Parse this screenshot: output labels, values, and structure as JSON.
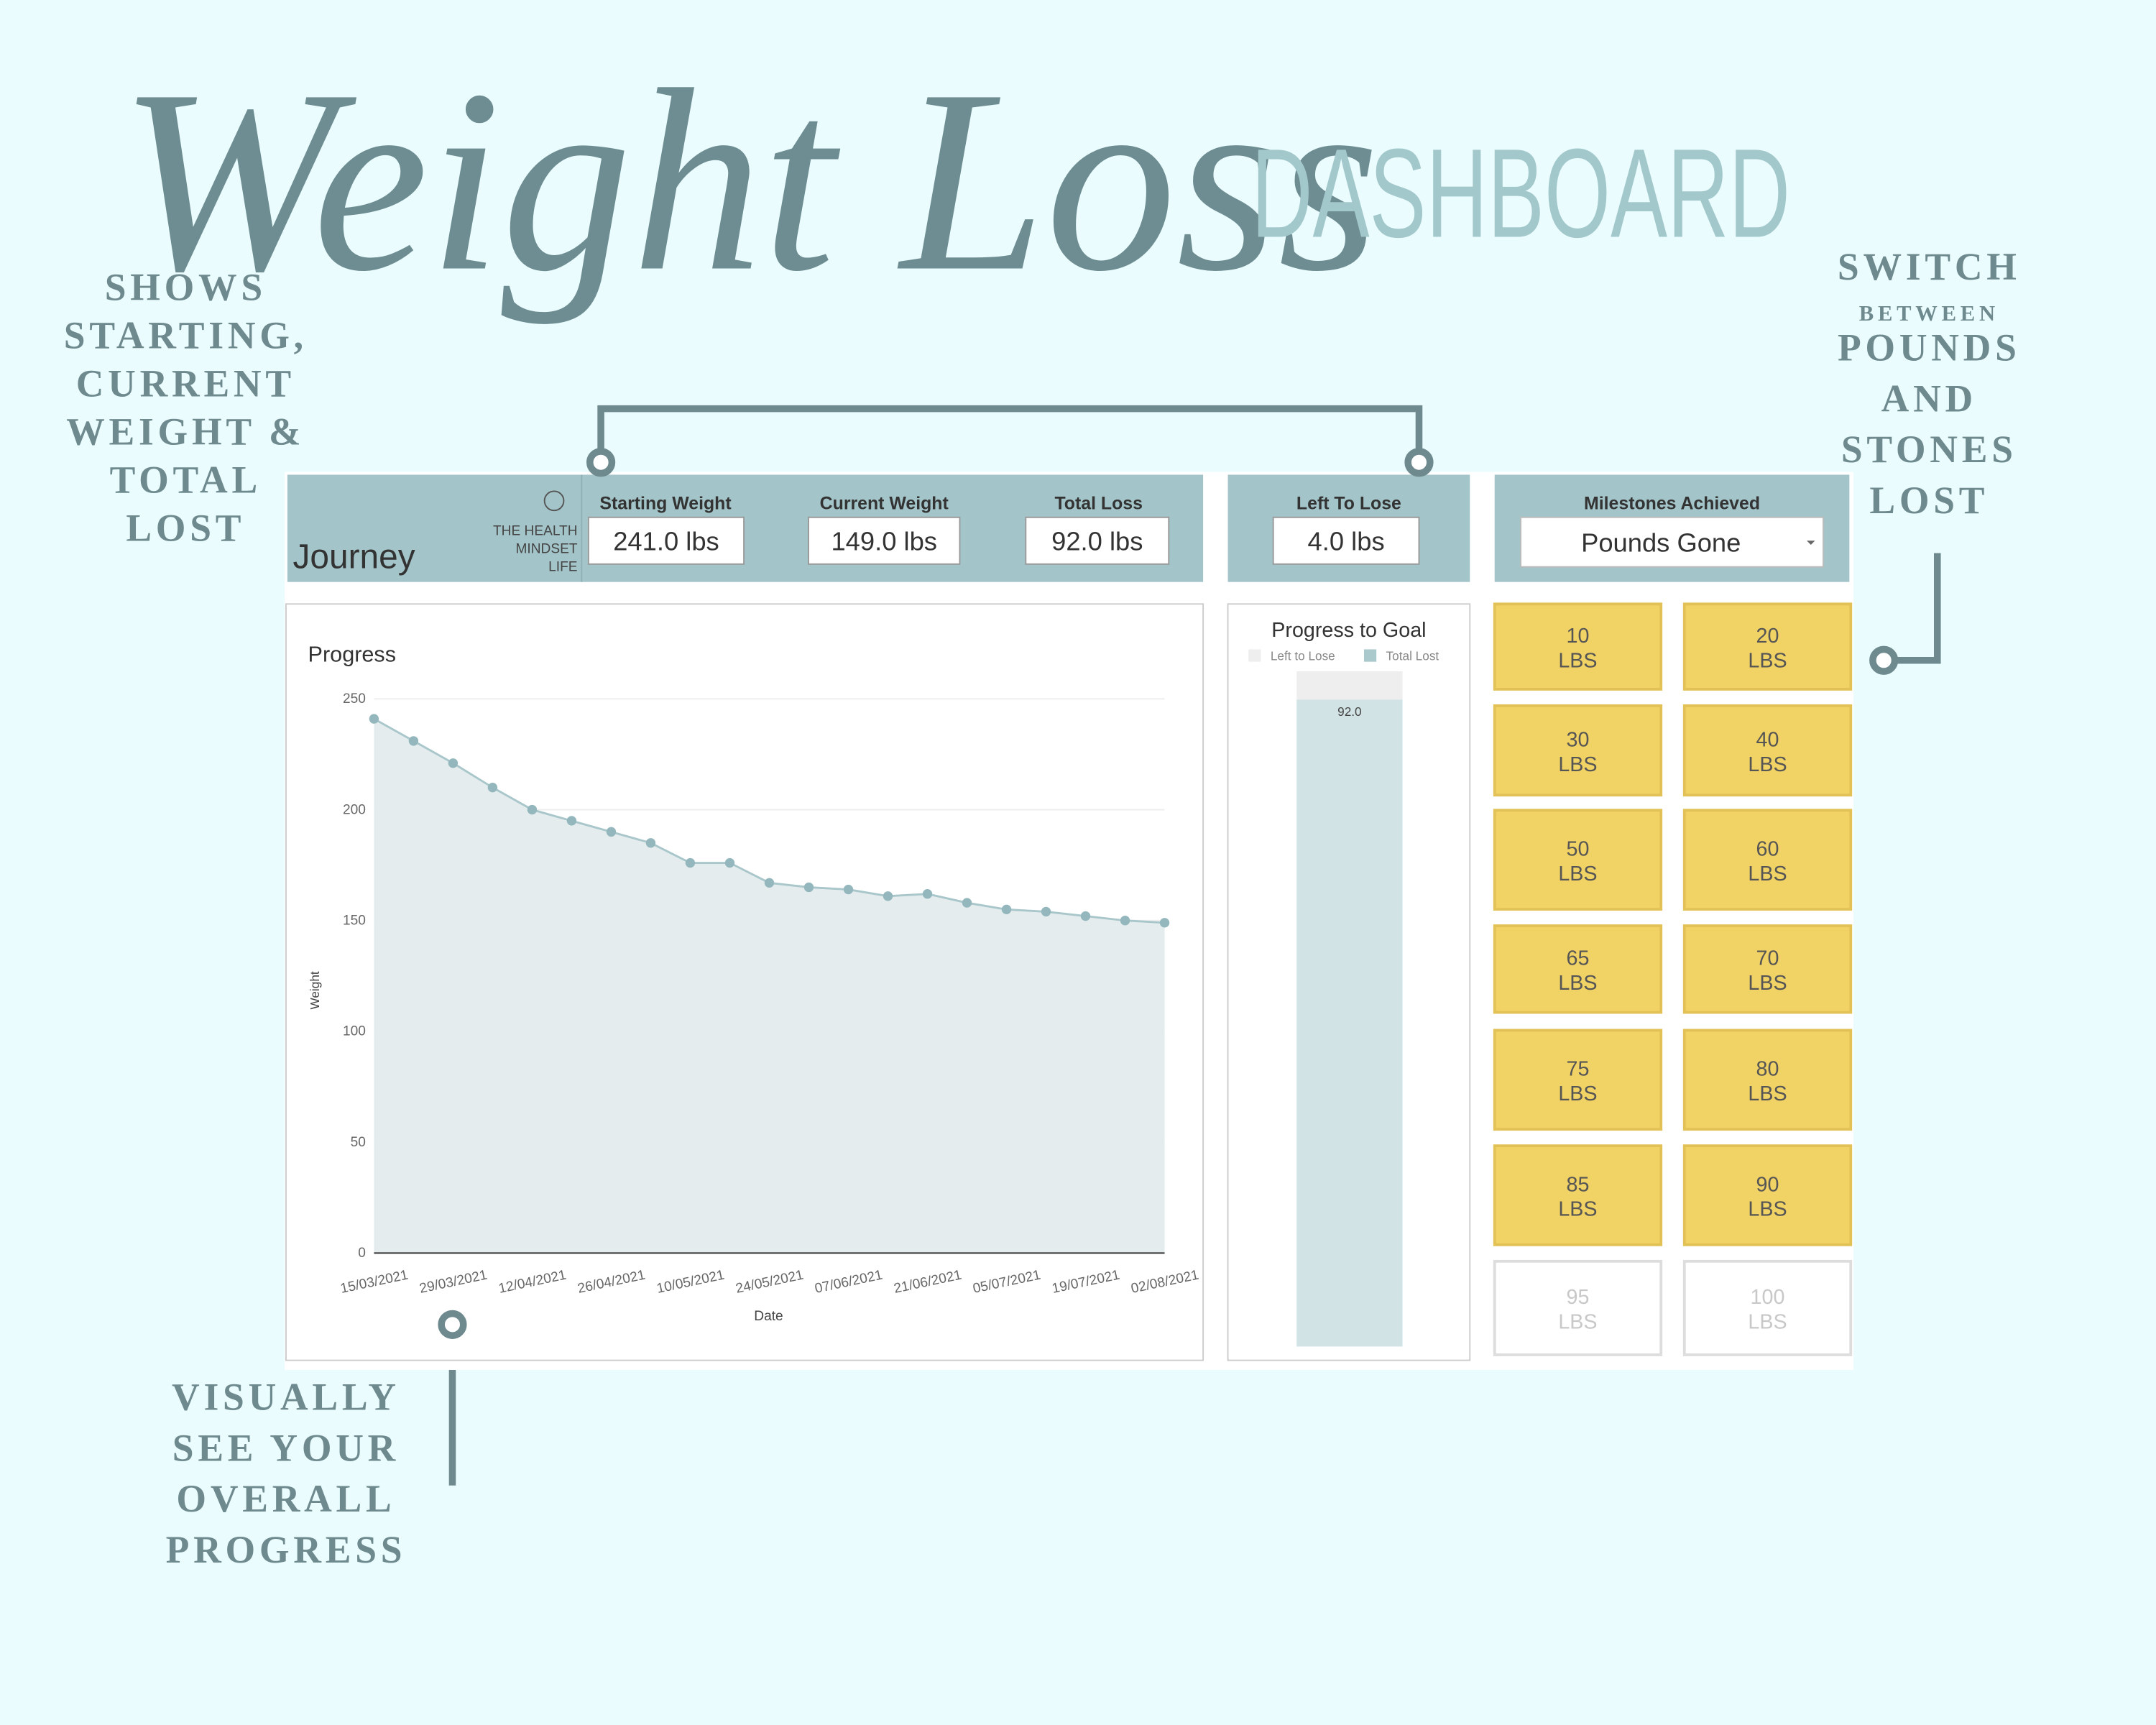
{
  "header": {
    "title": "Weight Loss",
    "subtitle": "DASHBOARD"
  },
  "annotations": {
    "summary": [
      "SHOWS",
      "STARTING,",
      "CURRENT",
      "WEIGHT &",
      "TOTAL",
      "LOST"
    ],
    "units": [
      "SWITCH",
      "BETWEEN",
      "POUNDS",
      "AND",
      "STONES",
      "LOST"
    ],
    "progress": [
      "VISUALLY",
      "SEE YOUR",
      "OVERALL",
      "PROGRESS"
    ]
  },
  "dashboard": {
    "name": "Journey",
    "brand": [
      "THE HEALTH",
      "MINDSET",
      "LIFE"
    ],
    "stats": [
      {
        "label": "Starting Weight",
        "value": "241.0 lbs"
      },
      {
        "label": "Current Weight",
        "value": "149.0 lbs"
      },
      {
        "label": "Total Loss",
        "value": "92.0 lbs"
      },
      {
        "label": "Left To Lose",
        "value": "4.0 lbs"
      }
    ],
    "milestones": {
      "label": "Milestones Achieved",
      "selected": "Pounds Gone",
      "items": [
        {
          "value": 10,
          "unit": "LBS",
          "achieved": true
        },
        {
          "value": 20,
          "unit": "LBS",
          "achieved": true
        },
        {
          "value": 30,
          "unit": "LBS",
          "achieved": true
        },
        {
          "value": 40,
          "unit": "LBS",
          "achieved": true
        },
        {
          "value": 50,
          "unit": "LBS",
          "achieved": true
        },
        {
          "value": 60,
          "unit": "LBS",
          "achieved": true
        },
        {
          "value": 65,
          "unit": "LBS",
          "achieved": true
        },
        {
          "value": 70,
          "unit": "LBS",
          "achieved": true
        },
        {
          "value": 75,
          "unit": "LBS",
          "achieved": true
        },
        {
          "value": 80,
          "unit": "LBS",
          "achieved": true
        },
        {
          "value": 85,
          "unit": "LBS",
          "achieved": true
        },
        {
          "value": 90,
          "unit": "LBS",
          "achieved": true
        },
        {
          "value": 95,
          "unit": "LBS",
          "achieved": false
        },
        {
          "value": 100,
          "unit": "LBS",
          "achieved": false
        }
      ]
    }
  },
  "chart_data": [
    {
      "type": "area",
      "title": "Progress",
      "xlabel": "Date",
      "ylabel": "Weight",
      "categories": [
        "15/03/2021",
        null,
        "29/03/2021",
        null,
        "12/04/2021",
        null,
        "26/04/2021",
        null,
        "10/05/2021",
        null,
        "24/05/2021",
        null,
        "07/06/2021",
        null,
        "21/06/2021",
        null,
        "05/07/2021",
        null,
        "19/07/2021",
        null,
        "02/08/2021"
      ],
      "values": [
        241,
        231,
        221,
        210,
        200,
        195,
        190,
        185,
        176,
        176,
        167,
        165,
        164,
        161,
        162,
        158,
        155,
        154,
        152,
        150,
        149
      ],
      "color": "#a9c7cb",
      "fill": "#e4ecee",
      "ylim": [
        0,
        250
      ],
      "yticks": [
        0,
        50,
        100,
        150,
        200,
        250
      ],
      "grid": true
    },
    {
      "type": "stacked_bar",
      "title": "Progress to Goal",
      "series": [
        {
          "name": "Left to Lose",
          "color": "#eeeeee",
          "values": [
            4
          ]
        },
        {
          "name": "Total Lost",
          "color": "#d2e3e6",
          "values": [
            92
          ],
          "value_labels": [
            "92.0"
          ]
        }
      ]
    }
  ]
}
